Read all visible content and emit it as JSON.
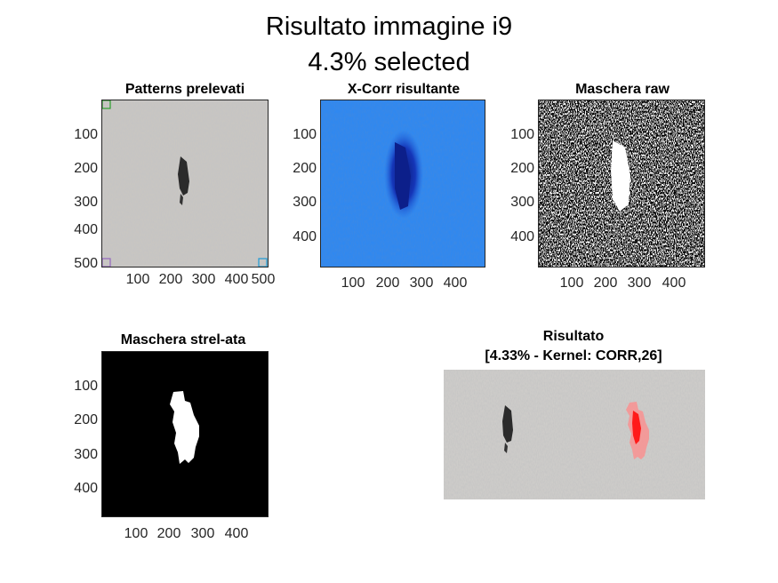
{
  "figure": {
    "title_line1": "Risultato immagine i9",
    "title_line2": "4.3% selected"
  },
  "panels": {
    "patterns": {
      "title": "Patterns prelevati",
      "yticks": [
        "100",
        "200",
        "300",
        "400",
        "500"
      ],
      "xticks": [
        "100",
        "200",
        "300",
        "400",
        "500"
      ],
      "pattern_colors": [
        "#2ca02c",
        "#9467bd",
        "#1f9bd6"
      ]
    },
    "xcorr": {
      "title": "X-Corr risultante",
      "yticks": [
        "100",
        "200",
        "300",
        "400"
      ],
      "xticks": [
        "100",
        "200",
        "300",
        "400"
      ]
    },
    "mask_raw": {
      "title": "Maschera raw",
      "yticks": [
        "100",
        "200",
        "300",
        "400"
      ],
      "xticks": [
        "100",
        "200",
        "300",
        "400"
      ]
    },
    "mask_strel": {
      "title": "Maschera strel-ata",
      "yticks": [
        "100",
        "200",
        "300",
        "400"
      ],
      "xticks": [
        "100",
        "200",
        "300",
        "400"
      ]
    },
    "result": {
      "title_line1": "Risultato",
      "title_line2": "[4.33% - Kernel: CORR,26]",
      "highlight_color": "#ff2020"
    }
  }
}
